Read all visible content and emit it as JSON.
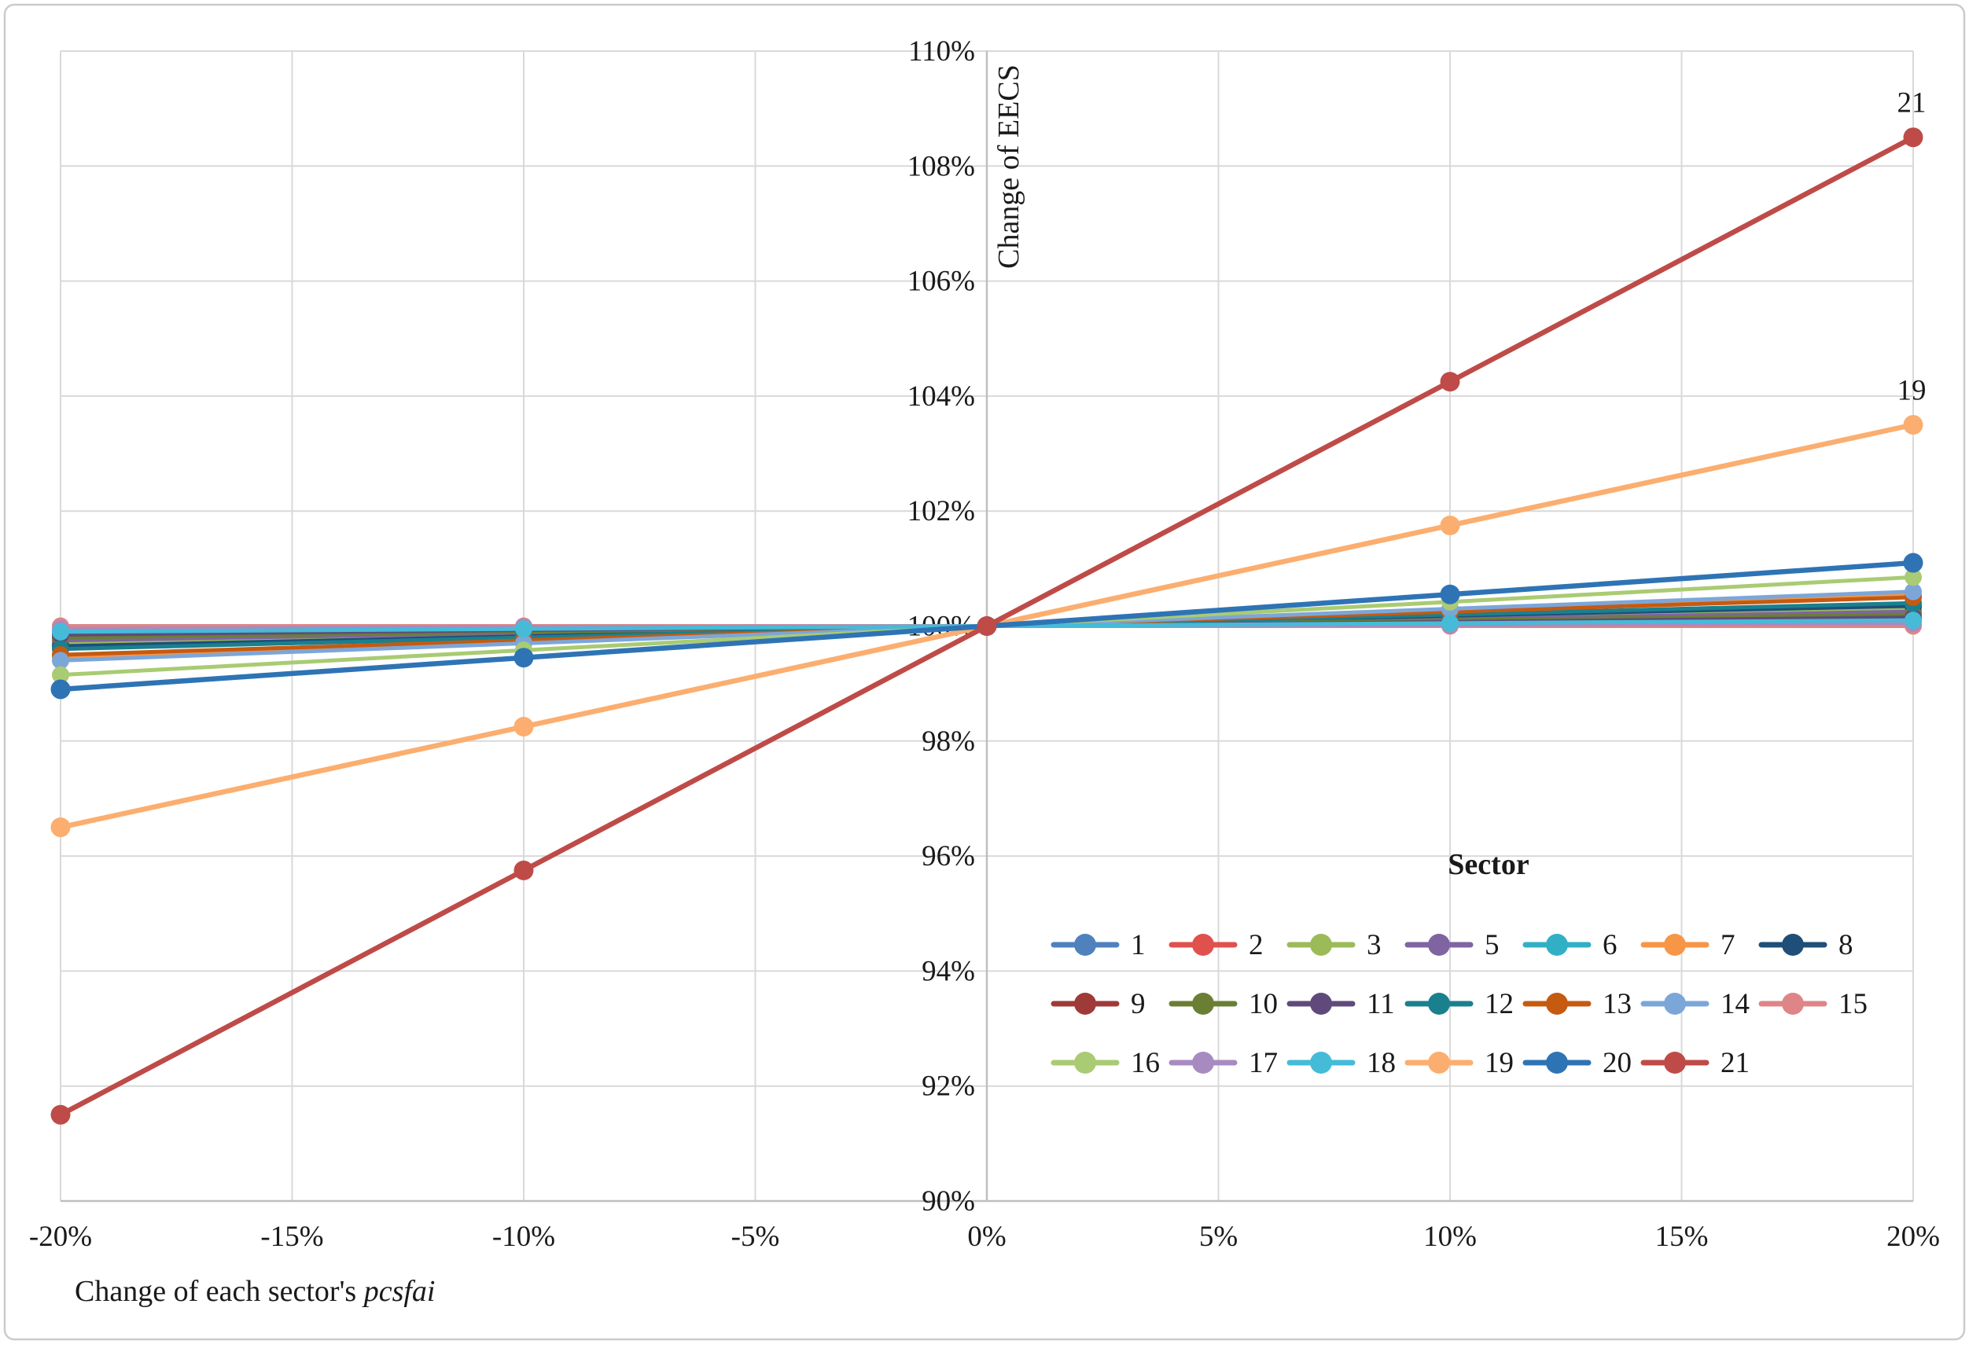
{
  "chart_data": {
    "type": "line",
    "title": "",
    "xlabel_regular": "Change of each sector's ",
    "xlabel_italic": "pcsfai",
    "ylabel": "Change of EECS",
    "legend_title": "Sector",
    "x": [
      -20,
      -10,
      0,
      10,
      20
    ],
    "x_ticks": [
      -20,
      -15,
      -10,
      -5,
      0,
      5,
      10,
      15,
      20
    ],
    "x_tick_labels": [
      "-20%",
      "-15%",
      "-10%",
      "-5%",
      "0%",
      "5%",
      "10%",
      "15%",
      "20%"
    ],
    "y_ticks": [
      90,
      92,
      94,
      96,
      98,
      100,
      102,
      104,
      106,
      108,
      110
    ],
    "y_tick_labels": [
      "90%",
      "92%",
      "94%",
      "96%",
      "98%",
      "100%",
      "102%",
      "104%",
      "106%",
      "108%",
      "110%"
    ],
    "xlim": [
      -20,
      20
    ],
    "ylim": [
      90,
      110
    ],
    "grid": true,
    "legend_position": "inside lower right, 3 rows",
    "annotations": [
      {
        "text": "21",
        "series": "21"
      },
      {
        "text": "19",
        "series": "19"
      }
    ],
    "series": [
      {
        "name": "1",
        "color": "#4F81BD",
        "values": [
          99.8,
          99.9,
          100,
          100.1,
          100.2
        ]
      },
      {
        "name": "2",
        "color": "#E0504D",
        "values": [
          99.85,
          99.93,
          100,
          100.07,
          100.15
        ]
      },
      {
        "name": "3",
        "color": "#9BBB59",
        "values": [
          99.7,
          99.85,
          100,
          100.15,
          100.3
        ]
      },
      {
        "name": "5",
        "color": "#8064A2",
        "values": [
          99.75,
          99.88,
          100,
          100.12,
          100.25
        ]
      },
      {
        "name": "6",
        "color": "#31B0C5",
        "values": [
          99.9,
          99.95,
          100,
          100.05,
          100.1
        ]
      },
      {
        "name": "7",
        "color": "#F79646",
        "values": [
          99.45,
          99.72,
          100,
          100.28,
          100.55
        ]
      },
      {
        "name": "8",
        "color": "#1F4E79",
        "values": [
          99.65,
          99.82,
          100,
          100.18,
          100.35
        ]
      },
      {
        "name": "9",
        "color": "#9E3A38",
        "values": [
          99.9,
          99.95,
          100,
          100.05,
          100.1
        ]
      },
      {
        "name": "10",
        "color": "#6B7F34",
        "values": [
          99.8,
          99.9,
          100,
          100.1,
          100.2
        ]
      },
      {
        "name": "11",
        "color": "#604A7B",
        "values": [
          99.85,
          99.93,
          100,
          100.07,
          100.15
        ]
      },
      {
        "name": "12",
        "color": "#1A808E",
        "values": [
          99.6,
          99.8,
          100,
          100.2,
          100.4
        ]
      },
      {
        "name": "13",
        "color": "#C55A11",
        "values": [
          99.5,
          99.75,
          100,
          100.25,
          100.5
        ]
      },
      {
        "name": "14",
        "color": "#7CA6D8",
        "values": [
          99.4,
          99.7,
          100,
          100.3,
          100.6
        ]
      },
      {
        "name": "15",
        "color": "#DE8587",
        "values": [
          100.0,
          100.0,
          100,
          100.0,
          100.0
        ]
      },
      {
        "name": "16",
        "color": "#A9CB73",
        "values": [
          99.15,
          99.58,
          100,
          100.42,
          100.85
        ]
      },
      {
        "name": "17",
        "color": "#A78BC0",
        "values": [
          99.95,
          99.98,
          100,
          100.02,
          100.05
        ]
      },
      {
        "name": "18",
        "color": "#45BBD8",
        "values": [
          99.9,
          99.95,
          100,
          100.05,
          100.1
        ]
      },
      {
        "name": "19",
        "color": "#FBAE6F",
        "values": [
          96.5,
          98.25,
          100,
          101.75,
          103.5
        ]
      },
      {
        "name": "20",
        "color": "#2E74B5",
        "values": [
          98.9,
          99.45,
          100,
          100.55,
          101.1
        ]
      },
      {
        "name": "21",
        "color": "#BE4B48",
        "values": [
          91.5,
          95.75,
          100,
          104.25,
          108.5
        ]
      }
    ],
    "colors": {
      "gridline": "#D9D9D9",
      "axis_line": "#BFBFBF",
      "border": "#CBCBCB",
      "text": "#1a1a1a"
    }
  }
}
